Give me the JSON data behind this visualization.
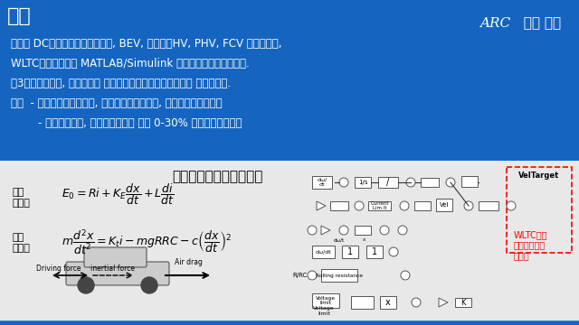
{
  "bg_blue": "#1565C0",
  "bg_white": "#F0F0F0",
  "title_top_right": "ARC   有賀 敬治",
  "section_title": "概要",
  "line1": "単純化 DCモータモデルを用いて, BEV, シリーズHV, PHV, FCV の動力特性,",
  "line2": "WLTC航続距離等を MATLAB/Simulink でシミュレーションした.",
  "line3": "第3版においては, 外力として 空気抵抗とタイヤの転がり抵抗 を考慮した.",
  "line4": "結果  - 電動車の動力特性は, 内燃機関車より優れ, 設計自由度も大きい",
  "line5": "        - 電費計算値は, スペックに対し 誤差 0-30% 程度とかなり一致",
  "sim_title": "シミュレーションモデル",
  "eq_label1": "電圧\n方程式",
  "eq_label2": "運動\n方程式",
  "eq1": "$E_0 = Ri + K_E\\dfrac{dx}{dt} + L\\dfrac{di}{dt}$",
  "eq2": "$m\\dfrac{d^2x}{dt^2} = K_t i - mgRRC - c\\left(\\dfrac{dx}{dt}\\right)^2$",
  "wltc_label": "WLTC速度\nプロファイル\nに追従",
  "driving_force": "Driving force",
  "inertial_force": "inertial force",
  "air_drag": "Air drag"
}
